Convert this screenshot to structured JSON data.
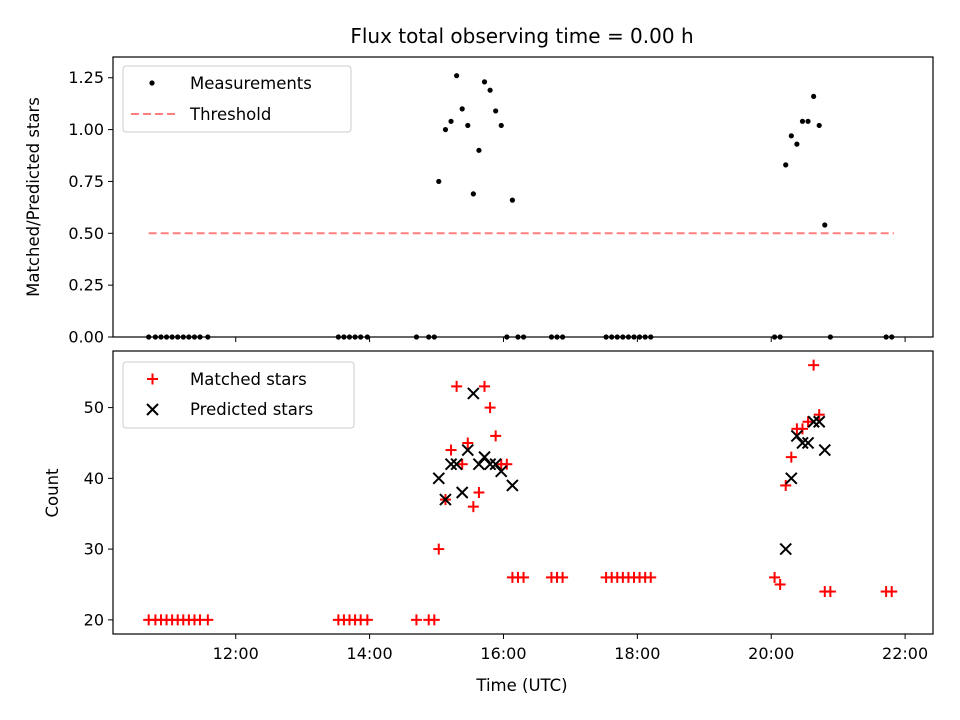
{
  "chart_data": [
    {
      "type": "scatter",
      "title": "Flux total observing time = 0.00 h",
      "xlabel": "",
      "ylabel": "Matched/Predicted stars",
      "ylim": [
        0,
        1.35
      ],
      "yticks": [
        "0.00",
        "0.25",
        "0.50",
        "0.75",
        "1.00",
        "1.25"
      ],
      "legend": {
        "placement": "top-left",
        "entries": [
          "Measurements",
          "Threshold"
        ]
      },
      "threshold": {
        "name": "Threshold",
        "value": 0.5,
        "x_start": "10:42",
        "x_end": "21:50",
        "color": "#ff7f7f",
        "style": "dashed"
      },
      "series": [
        {
          "name": "Measurements",
          "color": "#000000",
          "marker": "dot",
          "points": [
            [
              "10:42",
              0
            ],
            [
              "10:48",
              0
            ],
            [
              "10:53",
              0
            ],
            [
              "10:58",
              0
            ],
            [
              "11:03",
              0
            ],
            [
              "11:08",
              0
            ],
            [
              "11:13",
              0
            ],
            [
              "11:18",
              0
            ],
            [
              "11:23",
              0
            ],
            [
              "11:28",
              0
            ],
            [
              "11:35",
              0
            ],
            [
              "13:32",
              0
            ],
            [
              "13:37",
              0
            ],
            [
              "13:42",
              0
            ],
            [
              "13:47",
              0
            ],
            [
              "13:52",
              0
            ],
            [
              "13:58",
              0
            ],
            [
              "14:42",
              0
            ],
            [
              "14:53",
              0
            ],
            [
              "14:58",
              0
            ],
            [
              "15:02",
              0.75
            ],
            [
              "15:08",
              1.0
            ],
            [
              "15:13",
              1.04
            ],
            [
              "15:18",
              1.26
            ],
            [
              "15:23",
              1.1
            ],
            [
              "15:28",
              1.02
            ],
            [
              "15:33",
              0.69
            ],
            [
              "15:38",
              0.9
            ],
            [
              "15:43",
              1.23
            ],
            [
              "15:48",
              1.19
            ],
            [
              "15:53",
              1.09
            ],
            [
              "15:58",
              1.02
            ],
            [
              "16:03",
              0
            ],
            [
              "16:08",
              0.66
            ],
            [
              "16:13",
              0
            ],
            [
              "16:18",
              0
            ],
            [
              "16:43",
              0
            ],
            [
              "16:48",
              0
            ],
            [
              "16:53",
              0
            ],
            [
              "17:32",
              0
            ],
            [
              "17:37",
              0
            ],
            [
              "17:42",
              0
            ],
            [
              "17:47",
              0
            ],
            [
              "17:52",
              0
            ],
            [
              "17:57",
              0
            ],
            [
              "18:02",
              0
            ],
            [
              "18:07",
              0
            ],
            [
              "18:12",
              0
            ],
            [
              "20:03",
              0
            ],
            [
              "20:08",
              0
            ],
            [
              "20:13",
              0.83
            ],
            [
              "20:18",
              0.97
            ],
            [
              "20:23",
              0.93
            ],
            [
              "20:28",
              1.04
            ],
            [
              "20:33",
              1.04
            ],
            [
              "20:38",
              1.16
            ],
            [
              "20:43",
              1.02
            ],
            [
              "20:48",
              0.54
            ],
            [
              "20:53",
              0
            ],
            [
              "21:43",
              0
            ],
            [
              "21:48",
              0
            ]
          ]
        }
      ],
      "xlim": [
        "10:10",
        "22:25"
      ]
    },
    {
      "type": "scatter",
      "title": "",
      "xlabel": "Time (UTC)",
      "ylabel": "Count",
      "ylim": [
        18,
        58
      ],
      "yticks": [
        "20",
        "30",
        "40",
        "50"
      ],
      "xticks": [
        "12:00",
        "14:00",
        "16:00",
        "18:00",
        "20:00",
        "22:00"
      ],
      "xlim": [
        "10:10",
        "22:25"
      ],
      "legend": {
        "placement": "top-left",
        "entries": [
          "Matched stars",
          "Predicted stars"
        ]
      },
      "series": [
        {
          "name": "Matched stars",
          "color": "#ff0000",
          "marker": "plus",
          "points": [
            [
              "10:42",
              20
            ],
            [
              "10:48",
              20
            ],
            [
              "10:53",
              20
            ],
            [
              "10:58",
              20
            ],
            [
              "11:03",
              20
            ],
            [
              "11:08",
              20
            ],
            [
              "11:13",
              20
            ],
            [
              "11:18",
              20
            ],
            [
              "11:23",
              20
            ],
            [
              "11:28",
              20
            ],
            [
              "11:35",
              20
            ],
            [
              "13:32",
              20
            ],
            [
              "13:37",
              20
            ],
            [
              "13:42",
              20
            ],
            [
              "13:47",
              20
            ],
            [
              "13:52",
              20
            ],
            [
              "13:58",
              20
            ],
            [
              "14:42",
              20
            ],
            [
              "14:53",
              20
            ],
            [
              "14:58",
              20
            ],
            [
              "15:02",
              30
            ],
            [
              "15:08",
              37
            ],
            [
              "15:13",
              44
            ],
            [
              "15:18",
              53
            ],
            [
              "15:23",
              42
            ],
            [
              "15:28",
              45
            ],
            [
              "15:33",
              36
            ],
            [
              "15:38",
              38
            ],
            [
              "15:43",
              53
            ],
            [
              "15:48",
              50
            ],
            [
              "15:53",
              46
            ],
            [
              "15:58",
              42
            ],
            [
              "16:03",
              42
            ],
            [
              "16:08",
              26
            ],
            [
              "16:13",
              26
            ],
            [
              "16:18",
              26
            ],
            [
              "16:43",
              26
            ],
            [
              "16:48",
              26
            ],
            [
              "16:53",
              26
            ],
            [
              "17:32",
              26
            ],
            [
              "17:37",
              26
            ],
            [
              "17:42",
              26
            ],
            [
              "17:47",
              26
            ],
            [
              "17:52",
              26
            ],
            [
              "17:57",
              26
            ],
            [
              "18:02",
              26
            ],
            [
              "18:07",
              26
            ],
            [
              "18:12",
              26
            ],
            [
              "20:03",
              26
            ],
            [
              "20:08",
              25
            ],
            [
              "20:13",
              39
            ],
            [
              "20:18",
              43
            ],
            [
              "20:23",
              47
            ],
            [
              "20:28",
              47
            ],
            [
              "20:33",
              48
            ],
            [
              "20:38",
              56
            ],
            [
              "20:43",
              49
            ],
            [
              "20:48",
              24
            ],
            [
              "20:53",
              24
            ],
            [
              "21:43",
              24
            ],
            [
              "21:48",
              24
            ]
          ]
        },
        {
          "name": "Predicted stars",
          "color": "#000000",
          "marker": "cross",
          "points": [
            [
              "15:02",
              40
            ],
            [
              "15:08",
              37
            ],
            [
              "15:13",
              42
            ],
            [
              "15:18",
              42
            ],
            [
              "15:23",
              38
            ],
            [
              "15:28",
              44
            ],
            [
              "15:33",
              52
            ],
            [
              "15:38",
              42
            ],
            [
              "15:43",
              43
            ],
            [
              "15:48",
              42
            ],
            [
              "15:53",
              42
            ],
            [
              "15:58",
              41
            ],
            [
              "16:08",
              39
            ],
            [
              "20:13",
              30
            ],
            [
              "20:18",
              40
            ],
            [
              "20:23",
              46
            ],
            [
              "20:28",
              45
            ],
            [
              "20:33",
              45
            ],
            [
              "20:38",
              48
            ],
            [
              "20:43",
              48
            ],
            [
              "20:48",
              44
            ]
          ]
        }
      ]
    }
  ]
}
